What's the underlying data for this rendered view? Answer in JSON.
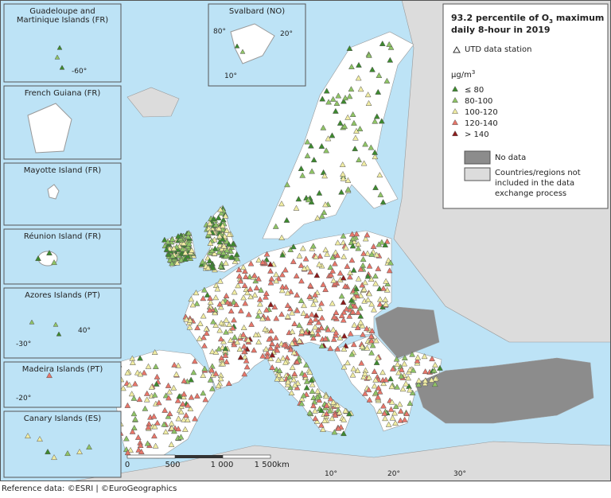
{
  "map": {
    "title": {
      "before": "93.2 percentile of O",
      "sub": "3",
      "line1_after": " maximum",
      "line2": "daily 8-hour in 2019"
    },
    "station_label": "UTD data station",
    "unit": {
      "base": "µg/m",
      "sup": "3"
    },
    "classes": [
      {
        "label": "≤ 80",
        "color": "#3d8a2e"
      },
      {
        "label": "80-100",
        "color": "#8fc465"
      },
      {
        "label": "100-120",
        "color": "#f1eda3"
      },
      {
        "label": "120-140",
        "color": "#e8766a"
      },
      {
        "label": "> 140",
        "color": "#8e1b1b"
      }
    ],
    "no_data": {
      "label": "No data",
      "color": "#8c8c8c"
    },
    "not_included": {
      "lines": [
        "Countries/regions not",
        "included in the data",
        "exchange process"
      ],
      "color": "#dcdcdc"
    },
    "insets": [
      "Guadeloupe and",
      "Martinique Islands (FR)",
      "French Guiana (FR)",
      "Mayotte Island (FR)",
      "Réunion Island (FR)",
      "Azores Islands (PT)",
      "Madeira Islands (PT)",
      "Canary Islands (ES)",
      "Svalbard (NO)"
    ],
    "graticule": [
      "10°",
      "20°",
      "30°",
      "-60°",
      "80°",
      "20°",
      "10°",
      "-30°",
      "40°",
      "-20°"
    ],
    "scale": [
      "0",
      "500",
      "1 000",
      "1 500",
      "km"
    ],
    "footer": "Reference data: ©ESRI | ©EuroGeographics"
  }
}
